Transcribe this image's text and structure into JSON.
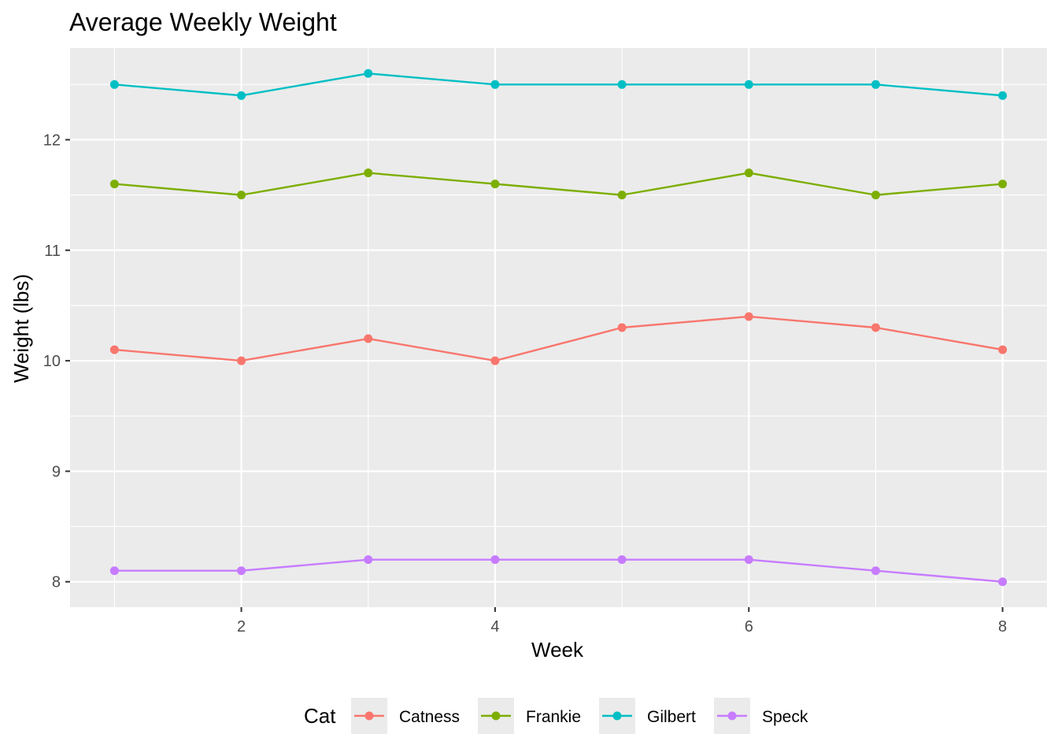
{
  "chart_data": {
    "type": "line",
    "title": "Average Weekly Weight",
    "xlabel": "Week",
    "ylabel": "Weight (lbs)",
    "x": [
      1,
      2,
      3,
      4,
      5,
      6,
      7,
      8
    ],
    "xlim": [
      0.65,
      8.35
    ],
    "ylim": [
      7.77,
      12.83
    ],
    "x_ticks": [
      2,
      4,
      6,
      8
    ],
    "y_ticks": [
      8,
      9,
      10,
      11,
      12
    ],
    "grid": true,
    "legend": {
      "title": "Cat",
      "placement": "bottom"
    },
    "series": [
      {
        "name": "Catness",
        "color": "#F8766D",
        "values": [
          10.1,
          10.0,
          10.2,
          10.0,
          10.3,
          10.4,
          10.3,
          10.1
        ]
      },
      {
        "name": "Frankie",
        "color": "#7CAE00",
        "values": [
          11.6,
          11.5,
          11.7,
          11.6,
          11.5,
          11.7,
          11.5,
          11.6
        ]
      },
      {
        "name": "Gilbert",
        "color": "#00BFC4",
        "values": [
          12.5,
          12.4,
          12.6,
          12.5,
          12.5,
          12.5,
          12.5,
          12.4
        ]
      },
      {
        "name": "Speck",
        "color": "#C77CFF",
        "values": [
          8.1,
          8.1,
          8.2,
          8.2,
          8.2,
          8.2,
          8.1,
          8.0
        ]
      }
    ]
  },
  "style": {
    "panel_background": "#EBEBEB",
    "grid_color": "#FFFFFF",
    "legend_key_background": "#EBEBEB"
  }
}
